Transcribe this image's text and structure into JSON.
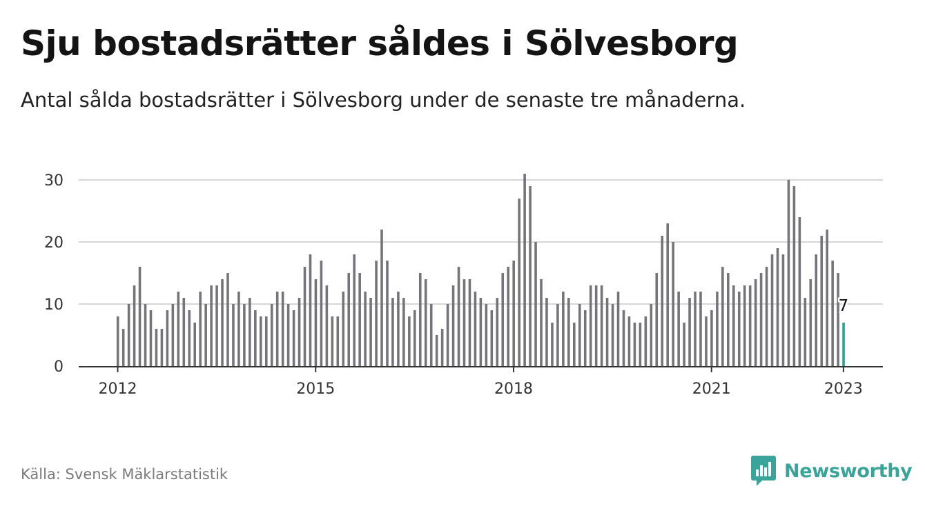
{
  "title": "Sju bostadsrätter såldes i Sölvesborg",
  "subtitle": "Antal sålda bostadsrätter i Sölvesborg under de senaste tre månaderna.",
  "source": "Källa: Svensk Mäklarstatistik",
  "brand": "Newsworthy",
  "colors": {
    "bar": "#75747a",
    "highlight": "#2aa198",
    "grid": "#d6d6d6",
    "axis": "#333333",
    "brand": "#3aa39a"
  },
  "chart_data": {
    "type": "bar",
    "start_year": 2012,
    "start_month": 1,
    "values": [
      8,
      6,
      10,
      13,
      16,
      10,
      9,
      6,
      6,
      9,
      10,
      12,
      11,
      9,
      7,
      12,
      10,
      13,
      13,
      14,
      15,
      10,
      12,
      10,
      11,
      9,
      8,
      8,
      10,
      12,
      12,
      10,
      9,
      11,
      16,
      18,
      14,
      17,
      13,
      8,
      8,
      12,
      15,
      18,
      15,
      12,
      11,
      17,
      22,
      17,
      11,
      12,
      11,
      8,
      9,
      15,
      14,
      10,
      5,
      6,
      10,
      13,
      16,
      14,
      14,
      12,
      11,
      10,
      9,
      11,
      15,
      16,
      17,
      27,
      31,
      29,
      20,
      14,
      11,
      7,
      10,
      12,
      11,
      7,
      10,
      9,
      13,
      13,
      13,
      11,
      10,
      12,
      9,
      8,
      7,
      7,
      8,
      10,
      15,
      21,
      23,
      20,
      12,
      7,
      11,
      12,
      12,
      8,
      9,
      12,
      16,
      15,
      13,
      12,
      13,
      13,
      14,
      15,
      16,
      18,
      19,
      18,
      30,
      29,
      24,
      11,
      14,
      18,
      21,
      22,
      17,
      15,
      7
    ],
    "x_ticks": [
      "2012",
      "2015",
      "2018",
      "2021",
      "2023"
    ],
    "y_ticks": [
      0,
      10,
      20,
      30
    ],
    "ylim": [
      0,
      31
    ],
    "last_value_label": "7",
    "grid": true,
    "xlabel": "",
    "ylabel": ""
  }
}
